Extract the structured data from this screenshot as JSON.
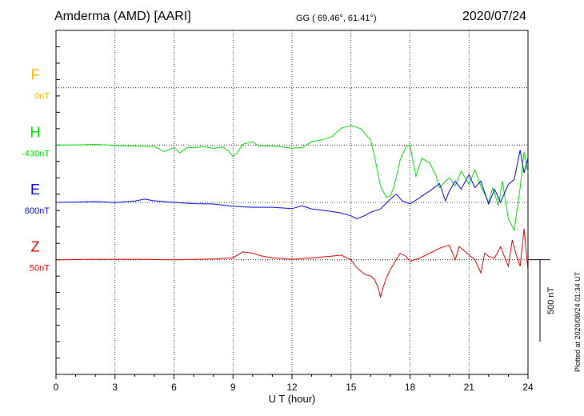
{
  "header": {
    "station": "Amderma (AMD)  [AARI]",
    "coords": "GG ( 69.46°,  61.41°)",
    "date": "2020/07/24"
  },
  "plotted_note": "Plotted at 2020/08/24 01:34 UT",
  "chart_data": {
    "type": "line",
    "xlabel": "U T (hour)",
    "xlim": [
      0,
      24
    ],
    "xticks": [
      0,
      3,
      6,
      9,
      12,
      15,
      18,
      21,
      24
    ],
    "ylim_nT": [
      0,
      2100
    ],
    "scale_bar": {
      "label": "500 nT",
      "value_nT": 500
    },
    "grid": true,
    "series": [
      {
        "name": "F",
        "baseline_text": "0nT",
        "color": "#ffb000",
        "baseline_nT": 1750,
        "points": []
      },
      {
        "name": "H",
        "baseline_text": "-430nT",
        "color": "#00e000",
        "baseline_nT": 1400,
        "points": [
          [
            0,
            1400
          ],
          [
            1,
            1401
          ],
          [
            2,
            1404
          ],
          [
            3,
            1398
          ],
          [
            4,
            1394
          ],
          [
            5,
            1390
          ],
          [
            5.5,
            1360
          ],
          [
            6,
            1385
          ],
          [
            6.3,
            1352
          ],
          [
            6.7,
            1386
          ],
          [
            7,
            1383
          ],
          [
            7.5,
            1390
          ],
          [
            8,
            1380
          ],
          [
            8.5,
            1388
          ],
          [
            8.8,
            1360
          ],
          [
            9,
            1330
          ],
          [
            9.2,
            1350
          ],
          [
            9.5,
            1405
          ],
          [
            10,
            1420
          ],
          [
            10.3,
            1395
          ],
          [
            11,
            1395
          ],
          [
            11.5,
            1388
          ],
          [
            12,
            1380
          ],
          [
            12.5,
            1385
          ],
          [
            13,
            1420
          ],
          [
            13.5,
            1432
          ],
          [
            14,
            1450
          ],
          [
            14.5,
            1503
          ],
          [
            15,
            1520
          ],
          [
            15.5,
            1500
          ],
          [
            16,
            1430
          ],
          [
            16.2,
            1330
          ],
          [
            16.5,
            1150
          ],
          [
            16.8,
            1080
          ],
          [
            17,
            1090
          ],
          [
            17.2,
            1150
          ],
          [
            17.5,
            1310
          ],
          [
            17.8,
            1390
          ],
          [
            18,
            1400
          ],
          [
            18.3,
            1210
          ],
          [
            18.6,
            1320
          ],
          [
            19,
            1290
          ],
          [
            19.3,
            1220
          ],
          [
            19.5,
            1140
          ],
          [
            19.8,
            1180
          ],
          [
            20,
            1200
          ],
          [
            20.3,
            1150
          ],
          [
            20.6,
            1240
          ],
          [
            21,
            1160
          ],
          [
            21.3,
            1250
          ],
          [
            21.6,
            1150
          ],
          [
            22,
            1050
          ],
          [
            22.2,
            1140
          ],
          [
            22.5,
            1030
          ],
          [
            22.7,
            1180
          ],
          [
            23,
            950
          ],
          [
            23.3,
            880
          ],
          [
            23.6,
            1140
          ],
          [
            23.8,
            1360
          ],
          [
            24,
            1230
          ]
        ]
      },
      {
        "name": "E",
        "baseline_text": "600nT",
        "color": "#0000e0",
        "baseline_nT": 1050,
        "points": [
          [
            0,
            1050
          ],
          [
            1,
            1052
          ],
          [
            2,
            1055
          ],
          [
            3,
            1049
          ],
          [
            4,
            1058
          ],
          [
            4.5,
            1070
          ],
          [
            5,
            1060
          ],
          [
            6,
            1050
          ],
          [
            7,
            1042
          ],
          [
            8,
            1040
          ],
          [
            9,
            1026
          ],
          [
            10,
            1020
          ],
          [
            11,
            1020
          ],
          [
            12,
            1012
          ],
          [
            12.5,
            1030
          ],
          [
            13,
            1010
          ],
          [
            14,
            995
          ],
          [
            14.5,
            985
          ],
          [
            15,
            968
          ],
          [
            15.3,
            950
          ],
          [
            15.7,
            970
          ],
          [
            16,
            990
          ],
          [
            16.5,
            1010
          ],
          [
            17,
            1070
          ],
          [
            17.3,
            1100
          ],
          [
            17.6,
            1060
          ],
          [
            18,
            1040
          ],
          [
            18.5,
            1080
          ],
          [
            19,
            1120
          ],
          [
            19.5,
            1165
          ],
          [
            19.8,
            1060
          ],
          [
            20,
            1120
          ],
          [
            20.3,
            1180
          ],
          [
            20.6,
            1130
          ],
          [
            21,
            1220
          ],
          [
            21.3,
            1140
          ],
          [
            21.6,
            1180
          ],
          [
            22,
            1040
          ],
          [
            22.3,
            1130
          ],
          [
            22.6,
            1050
          ],
          [
            23,
            1160
          ],
          [
            23.3,
            1190
          ],
          [
            23.6,
            1370
          ],
          [
            23.8,
            1230
          ],
          [
            24,
            1320
          ]
        ]
      },
      {
        "name": "Z",
        "baseline_text": "50nT",
        "color": "#e00000",
        "baseline_nT": 700,
        "points": [
          [
            0,
            700
          ],
          [
            2,
            702
          ],
          [
            4,
            703
          ],
          [
            6,
            700
          ],
          [
            7,
            702
          ],
          [
            8,
            704
          ],
          [
            9,
            712
          ],
          [
            9.5,
            748
          ],
          [
            10,
            740
          ],
          [
            10.5,
            722
          ],
          [
            11,
            712
          ],
          [
            12,
            702
          ],
          [
            13,
            712
          ],
          [
            14,
            722
          ],
          [
            14.5,
            728
          ],
          [
            15,
            700
          ],
          [
            15.3,
            650
          ],
          [
            15.7,
            610
          ],
          [
            16,
            600
          ],
          [
            16.2,
            580
          ],
          [
            16.4,
            520
          ],
          [
            16.5,
            470
          ],
          [
            16.6,
            520
          ],
          [
            16.8,
            590
          ],
          [
            17,
            640
          ],
          [
            17.3,
            700
          ],
          [
            17.5,
            740
          ],
          [
            17.8,
            720
          ],
          [
            18,
            690
          ],
          [
            18.5,
            710
          ],
          [
            19,
            740
          ],
          [
            19.5,
            770
          ],
          [
            20,
            790
          ],
          [
            20.3,
            700
          ],
          [
            20.5,
            780
          ],
          [
            20.8,
            750
          ],
          [
            21,
            730
          ],
          [
            21.3,
            700
          ],
          [
            21.6,
            620
          ],
          [
            21.8,
            740
          ],
          [
            22,
            720
          ],
          [
            22.3,
            710
          ],
          [
            22.6,
            780
          ],
          [
            23,
            660
          ],
          [
            23.2,
            820
          ],
          [
            23.4,
            730
          ],
          [
            23.6,
            660
          ],
          [
            23.8,
            890
          ],
          [
            24,
            630
          ]
        ]
      }
    ]
  }
}
